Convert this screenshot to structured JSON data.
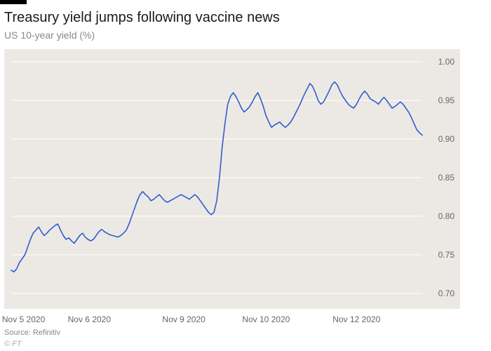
{
  "chart": {
    "type": "line",
    "title": "Treasury yield jumps following vaccine news",
    "subtitle": "US 10-year yield (%)",
    "source": "Source: Refinitiv",
    "copyright": "© FT",
    "plot_bg": "#ece9e4",
    "line_color": "#2f5ed1",
    "line_width": 1.6,
    "grid_color": "#ffffff",
    "grid_width": 1,
    "title_fontsize": 20,
    "subtitle_fontsize": 14,
    "tick_fontsize": 12,
    "tick_color": "#666666",
    "ylim": [
      0.7,
      1.0
    ],
    "ytick_step": 0.05,
    "yticks": [
      "0.70",
      "0.75",
      "0.80",
      "0.85",
      "0.90",
      "0.95",
      "1.00"
    ],
    "xticks": [
      {
        "pos": 0.03,
        "label": "Nov 5 2020"
      },
      {
        "pos": 0.19,
        "label": "Nov 6 2020"
      },
      {
        "pos": 0.42,
        "label": "Nov 9 2020"
      },
      {
        "pos": 0.62,
        "label": "Nov 10 2020"
      },
      {
        "pos": 0.84,
        "label": "Nov 12 2020"
      }
    ],
    "values": [
      0.73,
      0.728,
      0.732,
      0.74,
      0.745,
      0.75,
      0.76,
      0.77,
      0.778,
      0.782,
      0.786,
      0.78,
      0.775,
      0.778,
      0.782,
      0.785,
      0.788,
      0.79,
      0.782,
      0.775,
      0.77,
      0.772,
      0.768,
      0.765,
      0.77,
      0.775,
      0.778,
      0.773,
      0.77,
      0.768,
      0.77,
      0.775,
      0.78,
      0.783,
      0.78,
      0.778,
      0.776,
      0.775,
      0.774,
      0.773,
      0.775,
      0.778,
      0.782,
      0.79,
      0.8,
      0.81,
      0.82,
      0.828,
      0.832,
      0.828,
      0.825,
      0.82,
      0.822,
      0.825,
      0.828,
      0.824,
      0.82,
      0.818,
      0.82,
      0.822,
      0.824,
      0.826,
      0.828,
      0.826,
      0.824,
      0.822,
      0.825,
      0.828,
      0.825,
      0.82,
      0.815,
      0.81,
      0.805,
      0.802,
      0.805,
      0.82,
      0.85,
      0.89,
      0.92,
      0.945,
      0.955,
      0.96,
      0.955,
      0.948,
      0.94,
      0.935,
      0.938,
      0.942,
      0.948,
      0.955,
      0.96,
      0.952,
      0.942,
      0.93,
      0.922,
      0.915,
      0.918,
      0.92,
      0.922,
      0.918,
      0.915,
      0.918,
      0.922,
      0.928,
      0.935,
      0.942,
      0.95,
      0.958,
      0.965,
      0.972,
      0.968,
      0.96,
      0.95,
      0.945,
      0.948,
      0.955,
      0.962,
      0.97,
      0.974,
      0.97,
      0.962,
      0.955,
      0.95,
      0.945,
      0.942,
      0.94,
      0.945,
      0.952,
      0.958,
      0.962,
      0.958,
      0.952,
      0.95,
      0.948,
      0.945,
      0.95,
      0.954,
      0.95,
      0.945,
      0.94,
      0.942,
      0.945,
      0.948,
      0.945,
      0.94,
      0.935,
      0.928,
      0.92,
      0.912,
      0.908,
      0.905
    ]
  }
}
